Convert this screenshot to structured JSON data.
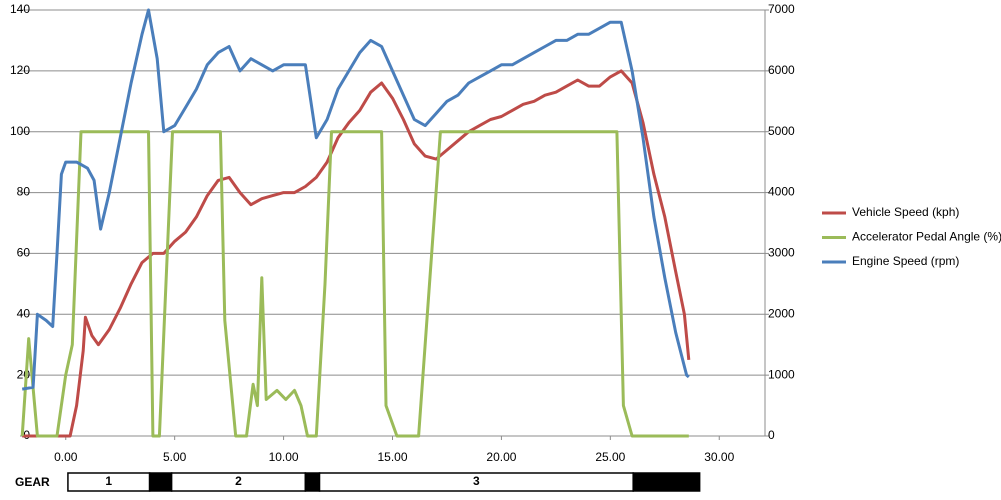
{
  "chart_data": {
    "type": "line",
    "xlim": [
      -2.1,
      32.1
    ],
    "xticks": [
      {
        "value": 0,
        "label": "0.00"
      },
      {
        "value": 5,
        "label": "5.00"
      },
      {
        "value": 10,
        "label": "10.00"
      },
      {
        "value": 15,
        "label": "15.00"
      },
      {
        "value": 20,
        "label": "20.00"
      },
      {
        "value": 25,
        "label": "25.00"
      },
      {
        "value": 30,
        "label": "30.00"
      }
    ],
    "ylim": [
      0,
      140
    ],
    "yticks": [
      0,
      20,
      40,
      60,
      80,
      100,
      120,
      140
    ],
    "y2lim": [
      0,
      7000
    ],
    "y2ticks": [
      0,
      1000,
      2000,
      3000,
      4000,
      5000,
      6000,
      7000
    ],
    "grid": true,
    "legend": "right",
    "series": [
      {
        "name": "Vehicle Speed (kph)",
        "color": "#be4b48",
        "axis": "y",
        "x": [
          -2,
          0.2,
          0.5,
          0.8,
          0.9,
          1.2,
          1.5,
          2,
          2.5,
          3,
          3.5,
          4,
          4.5,
          5,
          5.5,
          6,
          6.5,
          7,
          7.5,
          8,
          8.5,
          9,
          9.5,
          10,
          10.5,
          11,
          11.5,
          12,
          12.5,
          13,
          13.5,
          14,
          14.5,
          15,
          15.5,
          16,
          16.5,
          17,
          17.5,
          18,
          18.5,
          19,
          19.5,
          20,
          20.5,
          21,
          21.5,
          22,
          22.5,
          23,
          23.5,
          24,
          24.5,
          25,
          25.5,
          26,
          26.5,
          27,
          27.5,
          28,
          28.4,
          28.6
        ],
        "values": [
          0,
          0,
          10,
          28,
          39,
          33,
          30,
          35,
          42,
          50,
          57,
          60,
          60,
          64,
          67,
          72,
          79,
          84,
          85,
          80,
          76,
          78,
          79,
          80,
          80,
          82,
          85,
          90,
          98,
          103,
          107,
          113,
          116,
          111,
          104,
          96,
          92,
          91,
          94,
          97,
          100,
          102,
          104,
          105,
          107,
          109,
          110,
          112,
          113,
          115,
          117,
          115,
          115,
          118,
          120,
          116,
          103,
          86,
          72,
          54,
          40,
          25
        ]
      },
      {
        "name": "Accelerator Pedal Angle (%)",
        "color": "#9bbb59",
        "axis": "y",
        "x": [
          -2,
          -1.7,
          -1.3,
          -0.4,
          0,
          0.3,
          0.7,
          3.8,
          4.0,
          4.3,
          4.9,
          7.1,
          7.3,
          7.8,
          8.3,
          8.6,
          8.8,
          9.0,
          9.2,
          9.7,
          10.1,
          10.5,
          10.8,
          11.1,
          11.5,
          11.9,
          12.2,
          14.5,
          14.7,
          15.2,
          16.2,
          16.7,
          17.2,
          25.3,
          25.6,
          26.0,
          28.6
        ],
        "values": [
          0,
          32,
          0,
          0,
          20,
          30,
          100,
          100,
          0,
          0,
          100,
          100,
          38,
          0,
          0,
          17,
          10,
          52,
          12,
          15,
          12,
          15,
          10,
          0,
          0,
          50,
          100,
          100,
          10,
          0,
          0,
          50,
          100,
          100,
          10,
          0,
          0
        ]
      },
      {
        "name": "Engine Speed (rpm)",
        "color": "#4a7ebb",
        "axis": "y2",
        "x": [
          -2,
          -1.5,
          -1.3,
          -0.9,
          -0.6,
          -0.4,
          -0.2,
          0,
          0.5,
          1,
          1.3,
          1.6,
          2,
          2.5,
          3,
          3.5,
          3.8,
          4.2,
          4.5,
          5,
          5.5,
          6,
          6.5,
          7,
          7.5,
          8,
          8.5,
          9,
          9.5,
          10,
          10.5,
          11,
          11.5,
          12,
          12.5,
          13,
          13.5,
          14,
          14.5,
          15,
          15.5,
          16,
          16.5,
          17,
          17.5,
          18,
          18.5,
          19,
          19.5,
          20,
          20.5,
          21,
          21.5,
          22,
          22.5,
          23,
          23.5,
          24,
          24.5,
          25,
          25.5,
          26,
          26.5,
          27,
          27.5,
          28,
          28.5,
          28.6
        ],
        "values": [
          770,
          800,
          2000,
          1900,
          1800,
          3000,
          4300,
          4500,
          4500,
          4400,
          4200,
          3400,
          4000,
          4900,
          5800,
          6600,
          7000,
          6200,
          5000,
          5100,
          5400,
          5700,
          6100,
          6300,
          6400,
          6000,
          6200,
          6100,
          6000,
          6100,
          6100,
          6100,
          4900,
          5200,
          5700,
          6000,
          6300,
          6500,
          6400,
          6000,
          5600,
          5200,
          5100,
          5300,
          5500,
          5600,
          5800,
          5900,
          6000,
          6100,
          6100,
          6200,
          6300,
          6400,
          6500,
          6500,
          6600,
          6600,
          6700,
          6800,
          6800,
          6000,
          4900,
          3600,
          2600,
          1700,
          1000,
          970
        ]
      }
    ],
    "gear_bar": {
      "label": "GEAR",
      "segments": [
        {
          "label": "1",
          "start": 0.1,
          "end": 3.85
        },
        {
          "label": null,
          "start": 3.85,
          "end": 4.86
        },
        {
          "label": "2",
          "start": 4.86,
          "end": 11.0
        },
        {
          "label": null,
          "start": 11.0,
          "end": 11.65
        },
        {
          "label": "3",
          "start": 11.65,
          "end": 26.05
        },
        {
          "label": null,
          "start": 26.05,
          "end": 29.1
        }
      ]
    }
  }
}
